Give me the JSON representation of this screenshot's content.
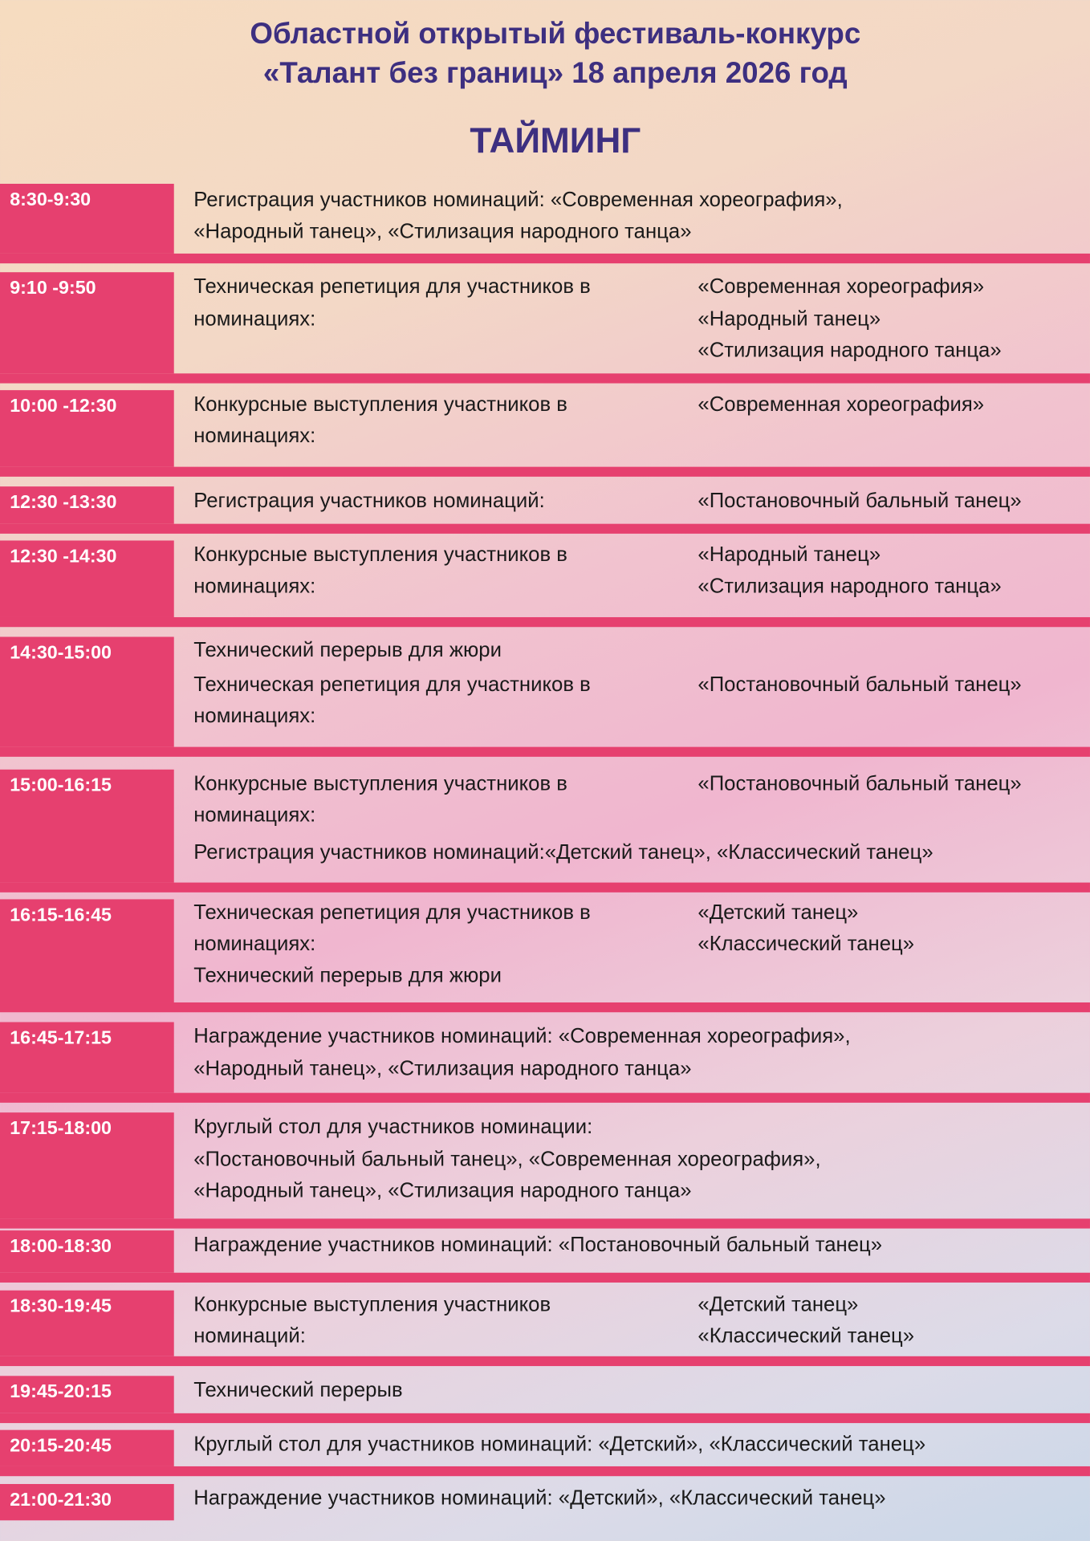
{
  "header": {
    "line1": "Областной открытый фестиваль-конкурс",
    "line2": "«Талант без границ»  18 апреля 2026 год",
    "heading": "ТАЙМИНГ"
  },
  "colors": {
    "accent": "#e6406f",
    "title": "#3d2f80"
  },
  "rows": [
    {
      "time": "8:30-9:30",
      "lines": [
        {
          "left": "Регистрация участников номинаций: «Современная хореография»,"
        },
        {
          "left": "«Народный танец», «Стилизация народного танца»"
        }
      ]
    },
    {
      "time": "9:10 -9:50",
      "lines": [
        {
          "left": "Техническая репетиция для участников в",
          "right": "«Современная хореография»"
        },
        {
          "left": "номинациях:",
          "right": "«Народный танец»"
        },
        {
          "right": "«Стилизация народного танца»"
        }
      ]
    },
    {
      "time": "10:00 -12:30",
      "lines": [
        {
          "left": "Конкурсные выступления участников в",
          "right": "«Современная хореография»"
        },
        {
          "left": "номинациях:"
        }
      ]
    },
    {
      "time": "12:30 -13:30",
      "lines": [
        {
          "left": "Регистрация участников номинаций:",
          "right": "«Постановочный бальный танец»"
        }
      ]
    },
    {
      "time": "12:30 -14:30",
      "lines": [
        {
          "left": "Конкурсные выступления участников в",
          "right": "«Народный танец»"
        },
        {
          "left": "номинациях:",
          "right": "«Стилизация народного танца»"
        }
      ]
    },
    {
      "time": "14:30-15:00",
      "lines": [
        {
          "left": "Технический перерыв для жюри"
        },
        {
          "left": "Техническая репетиция для участников в",
          "right": "«Постановочный бальный танец»"
        },
        {
          "left": "номинациях:"
        }
      ]
    },
    {
      "time": "15:00-16:15",
      "lines": [
        {
          "left": "Конкурсные выступления участников в",
          "right": "«Постановочный бальный танец»"
        },
        {
          "left": "номинациях:"
        },
        {
          "left": "Регистрация участников номинаций:«Детский танец», «Классический танец»"
        }
      ]
    },
    {
      "time": "16:15-16:45",
      "lines": [
        {
          "left": "Техническая репетиция для участников в",
          "right": "«Детский танец»"
        },
        {
          "left": "номинациях:",
          "right": "«Классический танец»"
        },
        {
          "left": "Технический перерыв для жюри"
        }
      ]
    },
    {
      "time": "16:45-17:15",
      "lines": [
        {
          "left": "Награждение участников номинаций: «Современная хореография»,"
        },
        {
          "left": "«Народный танец», «Стилизация народного танца»"
        }
      ]
    },
    {
      "time": "17:15-18:00",
      "lines": [
        {
          "left": "Круглый стол для участников номинации:"
        },
        {
          "left": "«Постановочный бальный танец», «Современная хореография»,"
        },
        {
          "left": "«Народный танец», «Стилизация народного танца»"
        }
      ]
    },
    {
      "time": "18:00-18:30",
      "lines": [
        {
          "left": "Награждение участников номинаций: «Постановочный бальный танец»"
        }
      ]
    },
    {
      "time": "18:30-19:45",
      "lines": [
        {
          "left": "Конкурсные выступления участников",
          "right": "«Детский танец»"
        },
        {
          "left": "номинаций:",
          "right": "«Классический танец»"
        }
      ]
    },
    {
      "time": "19:45-20:15",
      "lines": [
        {
          "left": "Технический перерыв"
        }
      ]
    },
    {
      "time": "20:15-20:45",
      "lines": [
        {
          "left": "Круглый стол для участников номинаций: «Детский», «Классический танец»"
        }
      ]
    },
    {
      "time": "21:00-21:30",
      "lines": [
        {
          "left": "Награждение участников номинаций: «Детский», «Классический танец»"
        }
      ]
    }
  ]
}
